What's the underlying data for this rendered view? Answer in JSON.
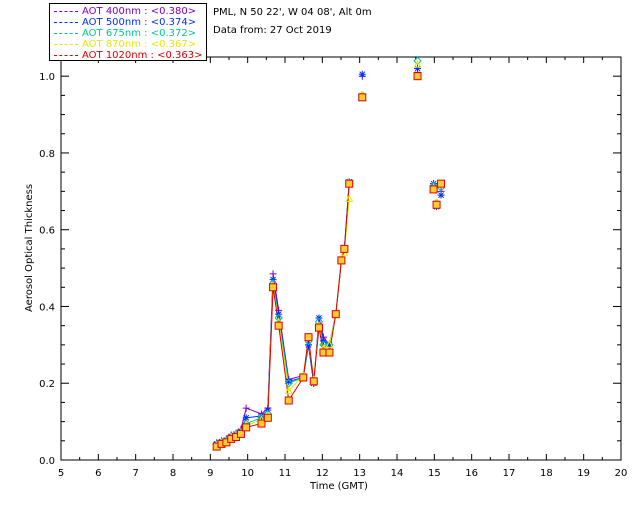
{
  "info": {
    "site": "PML, N 50 22', W 04 08', Alt 0m",
    "date": "Data from: 27 Oct 2019"
  },
  "legend": [
    {
      "text": "AOT  400nm : <0.380>",
      "color": "#8000c0"
    },
    {
      "text": "AOT  500nm : <0.374>",
      "color": "#0030ff"
    },
    {
      "text": "AOT  675nm : <0.372>",
      "color": "#00c890"
    },
    {
      "text": "AOT  870nm : <0.367>",
      "color": "#e8e800"
    },
    {
      "text": "AOT 1020nm : <0.363>",
      "color": "#e00000"
    }
  ],
  "chart_data": {
    "type": "line",
    "xlabel": "Time (GMT)",
    "ylabel": "Aerosol Optical Thickness",
    "xlim": [
      5,
      20
    ],
    "ylim": [
      0,
      1.05
    ],
    "xticks": [
      5,
      6,
      7,
      8,
      9,
      10,
      11,
      12,
      13,
      14,
      15,
      16,
      17,
      18,
      19,
      20
    ],
    "yticks": [
      0.0,
      0.2,
      0.4,
      0.6,
      0.8,
      1.0
    ],
    "yticklabels": [
      "0.0",
      "0.2",
      "0.4",
      "0.6",
      "0.8",
      "1.0"
    ],
    "colors": {
      "series400": "#8000c0",
      "series500": "#0030ff",
      "series675": "#00c890",
      "series870": "#e8e800",
      "series1020": "#e00000",
      "square_fill": "#ffcc33"
    },
    "x": [
      9.17,
      9.3,
      9.43,
      9.56,
      9.69,
      9.82,
      9.96,
      10.37,
      10.54,
      10.68,
      10.83,
      11.1,
      11.49,
      11.63,
      11.77,
      11.91,
      12.03,
      12.19,
      12.36,
      12.51,
      12.59,
      12.72,
      13.07,
      14.55,
      14.98,
      15.06,
      15.18
    ],
    "connected_count": 22,
    "series": [
      {
        "name": "400nm",
        "values": [
          0.045,
          0.05,
          0.055,
          0.065,
          0.07,
          0.08,
          0.135,
          0.12,
          0.135,
          0.485,
          0.39,
          0.21,
          0.22,
          0.3,
          0.2,
          0.37,
          0.32,
          0.3,
          0.38,
          0.52,
          0.55,
          0.72,
          1.0,
          1.01,
          0.72,
          0.67,
          0.7
        ]
      },
      {
        "name": "500nm",
        "values": [
          0.042,
          0.048,
          0.052,
          0.062,
          0.068,
          0.075,
          0.11,
          0.115,
          0.13,
          0.47,
          0.38,
          0.205,
          0.215,
          0.3,
          0.2,
          0.37,
          0.31,
          0.3,
          0.38,
          0.52,
          0.55,
          0.725,
          1.005,
          1.02,
          0.72,
          0.66,
          0.69
        ]
      },
      {
        "name": "675nm",
        "values": [
          0.04,
          0.046,
          0.05,
          0.06,
          0.065,
          0.072,
          0.095,
          0.11,
          0.12,
          0.46,
          0.37,
          0.2,
          0.215,
          0.31,
          0.205,
          0.36,
          0.3,
          0.3,
          0.38,
          0.52,
          0.55,
          0.72,
          0.95,
          1.04,
          0.715,
          0.67,
          0.71
        ]
      },
      {
        "name": "870nm",
        "values": [
          0.038,
          0.044,
          0.048,
          0.058,
          0.062,
          0.07,
          0.09,
          0.105,
          0.115,
          0.455,
          0.36,
          0.18,
          0.22,
          0.32,
          0.21,
          0.35,
          0.29,
          0.3,
          0.38,
          0.525,
          0.54,
          0.68,
          0.95,
          1.03,
          0.71,
          0.67,
          0.72
        ]
      },
      {
        "name": "1020nm",
        "values": [
          0.035,
          0.042,
          0.046,
          0.055,
          0.06,
          0.068,
          0.085,
          0.095,
          0.11,
          0.45,
          0.35,
          0.155,
          0.215,
          0.32,
          0.205,
          0.345,
          0.28,
          0.28,
          0.38,
          0.52,
          0.55,
          0.72,
          0.945,
          1.0,
          0.705,
          0.665,
          0.72
        ]
      }
    ]
  }
}
